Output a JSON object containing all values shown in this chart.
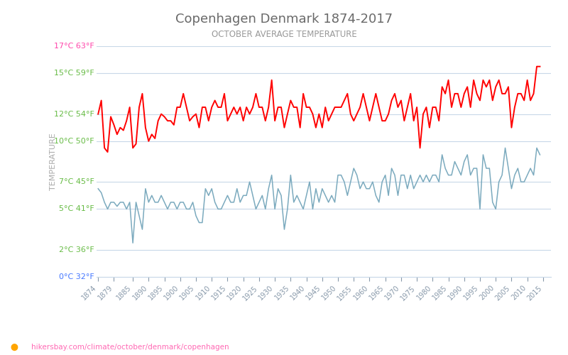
{
  "title": "Copenhagen Denmark 1874-2017",
  "subtitle": "OCTOBER AVERAGE TEMPERATURE",
  "ylabel": "TEMPERATURE",
  "title_color": "#696969",
  "subtitle_color": "#999999",
  "ylabel_color": "#aaaaaa",
  "background_color": "#ffffff",
  "grid_color": "#c8d8e8",
  "day_color": "#ff0000",
  "night_color": "#7baabe",
  "ytick_green_color": "#66bb44",
  "ytick_top_color": "#ff44aa",
  "ytick_0_color": "#4477ff",
  "url_color": "#ff69b4",
  "url_text": "hikersbay.com/climate/october/denmark/copenhagen",
  "start_year": 1874,
  "end_year": 2017,
  "ylim_min": 0,
  "ylim_max": 17,
  "yticks_c": [
    0,
    2,
    5,
    7,
    10,
    12,
    15,
    17
  ],
  "yticks_f": [
    32,
    36,
    41,
    45,
    50,
    54,
    59,
    63
  ],
  "xticks": [
    1874,
    1879,
    1885,
    1890,
    1895,
    1900,
    1905,
    1910,
    1915,
    1920,
    1925,
    1930,
    1935,
    1940,
    1945,
    1950,
    1955,
    1960,
    1965,
    1970,
    1975,
    1980,
    1985,
    1990,
    1995,
    2000,
    2005,
    2010,
    2015
  ],
  "day_temps": [
    12.0,
    13.0,
    9.5,
    9.2,
    11.8,
    11.2,
    10.5,
    11.0,
    10.8,
    11.5,
    12.5,
    9.5,
    9.8,
    12.5,
    13.5,
    11.0,
    10.0,
    10.5,
    10.2,
    11.5,
    12.0,
    11.8,
    11.5,
    11.5,
    11.2,
    12.5,
    12.5,
    13.5,
    12.5,
    11.5,
    11.8,
    12.0,
    11.0,
    12.5,
    12.5,
    11.5,
    12.5,
    13.0,
    12.5,
    12.5,
    13.5,
    11.5,
    12.0,
    12.5,
    12.0,
    12.5,
    11.5,
    12.5,
    12.0,
    12.5,
    13.5,
    12.5,
    12.5,
    11.5,
    12.5,
    14.5,
    11.5,
    12.5,
    12.5,
    11.0,
    12.0,
    13.0,
    12.5,
    12.5,
    11.0,
    13.5,
    12.5,
    12.5,
    12.0,
    11.0,
    12.0,
    11.0,
    12.5,
    11.5,
    12.0,
    12.5,
    12.5,
    12.5,
    13.0,
    13.5,
    12.0,
    11.5,
    12.0,
    12.5,
    13.5,
    12.5,
    11.5,
    12.5,
    13.5,
    12.5,
    11.5,
    11.5,
    12.0,
    13.0,
    13.5,
    12.5,
    13.0,
    11.5,
    12.5,
    13.5,
    11.5,
    12.5,
    9.5,
    12.0,
    12.5,
    11.0,
    12.5,
    12.5,
    11.5,
    14.0,
    13.5,
    14.5,
    12.5,
    13.5,
    13.5,
    12.5,
    13.5,
    14.0,
    12.5,
    14.5,
    13.5,
    13.0,
    14.5,
    14.0,
    14.5,
    13.0,
    14.0,
    14.5,
    13.5,
    13.5,
    14.0,
    11.0,
    12.5,
    13.5,
    13.5,
    13.0,
    14.5,
    13.0,
    13.5,
    15.5,
    15.5
  ],
  "night_temps": [
    6.5,
    6.2,
    5.5,
    5.0,
    5.5,
    5.5,
    5.2,
    5.5,
    5.5,
    5.0,
    5.5,
    2.5,
    5.5,
    4.5,
    3.5,
    6.5,
    5.5,
    6.0,
    5.5,
    5.5,
    6.0,
    5.5,
    5.0,
    5.5,
    5.5,
    5.0,
    5.5,
    5.5,
    5.0,
    5.0,
    5.5,
    4.5,
    4.0,
    4.0,
    6.5,
    6.0,
    6.5,
    5.5,
    5.0,
    5.0,
    5.5,
    6.0,
    5.5,
    5.5,
    6.5,
    5.5,
    6.0,
    6.0,
    7.0,
    6.0,
    5.0,
    5.5,
    6.0,
    5.0,
    6.5,
    7.5,
    5.0,
    6.5,
    6.0,
    3.5,
    5.0,
    7.5,
    5.5,
    6.0,
    5.5,
    5.0,
    6.0,
    7.0,
    5.0,
    6.5,
    5.5,
    6.5,
    6.0,
    5.5,
    6.0,
    5.5,
    7.5,
    7.5,
    7.0,
    6.0,
    7.0,
    8.0,
    7.5,
    6.5,
    7.0,
    6.5,
    6.5,
    7.0,
    6.0,
    5.5,
    7.0,
    7.5,
    6.0,
    8.0,
    7.5,
    6.0,
    7.5,
    7.5,
    6.5,
    7.5,
    6.5,
    7.0,
    7.5,
    7.0,
    7.5,
    7.0,
    7.5,
    7.5,
    7.0,
    9.0,
    8.0,
    7.5,
    7.5,
    8.5,
    8.0,
    7.5,
    8.5,
    9.0,
    7.5,
    8.0,
    8.0,
    5.0,
    9.0,
    8.0,
    8.0,
    5.5,
    5.0,
    7.0,
    7.5,
    9.5,
    8.0,
    6.5,
    7.5,
    8.0,
    7.0,
    7.0,
    7.5,
    8.0,
    7.5,
    9.5,
    9.0
  ]
}
